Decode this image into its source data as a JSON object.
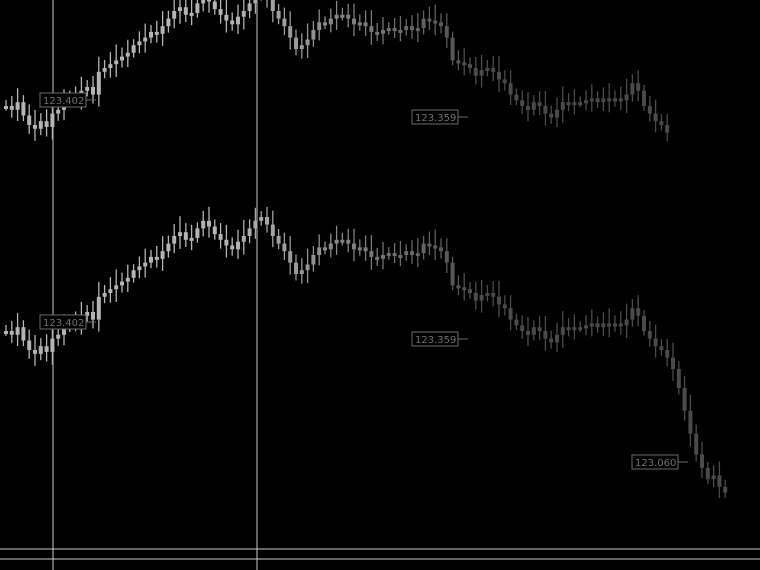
{
  "chart_data": [
    {
      "type": "candlestick",
      "series_color": "#b4b4b4",
      "fade_to_color": "#4a4a4a",
      "annotations": [
        "123.402",
        "123.359"
      ],
      "close_values": [
        0.6,
        0.58,
        0.62,
        0.55,
        0.5,
        0.48,
        0.52,
        0.49,
        0.56,
        0.58,
        0.62,
        0.65,
        0.64,
        0.68,
        0.7,
        0.66,
        0.78,
        0.8,
        0.82,
        0.84,
        0.86,
        0.88,
        0.92,
        0.94,
        0.96,
        0.99,
        0.98,
        1.02,
        1.06,
        1.1,
        1.12,
        1.08,
        1.09,
        1.14,
        1.18,
        1.15,
        1.11,
        1.08,
        1.05,
        1.03,
        1.07,
        1.1,
        1.14,
        1.18,
        1.2,
        1.16,
        1.1,
        1.06,
        1.02,
        0.96,
        0.9,
        0.92,
        0.95,
        1.0,
        1.04,
        1.03,
        1.06,
        1.08,
        1.08,
        1.06,
        1.03,
        1.04,
        1.02,
        0.99,
        0.98,
        1.0,
        1.01,
        1.0,
        1.0,
        1.02,
        1.0,
        1.01,
        1.06,
        1.05,
        1.04,
        1.02,
        0.96,
        0.84,
        0.83,
        0.82,
        0.8,
        0.76,
        0.79,
        0.8,
        0.78,
        0.74,
        0.72,
        0.66,
        0.63,
        0.6,
        0.58,
        0.62,
        0.6,
        0.56,
        0.54,
        0.58,
        0.62,
        0.61,
        0.62,
        0.62,
        0.63,
        0.64,
        0.62,
        0.64,
        0.63,
        0.64,
        0.63,
        0.66,
        0.72,
        0.68,
        0.6,
        0.56,
        0.52,
        0.5,
        0.46
      ]
    },
    {
      "type": "candlestick",
      "series_color": "#b4b4b4",
      "fade_to_color": "#4a4a4a",
      "annotations": [
        "123.402",
        "123.359",
        "123.060"
      ],
      "close_values": [
        0.6,
        0.58,
        0.62,
        0.55,
        0.5,
        0.48,
        0.52,
        0.49,
        0.56,
        0.58,
        0.62,
        0.65,
        0.64,
        0.68,
        0.7,
        0.66,
        0.78,
        0.8,
        0.82,
        0.84,
        0.86,
        0.88,
        0.92,
        0.94,
        0.96,
        0.99,
        0.98,
        1.02,
        1.06,
        1.1,
        1.12,
        1.08,
        1.09,
        1.14,
        1.18,
        1.15,
        1.11,
        1.08,
        1.05,
        1.03,
        1.07,
        1.1,
        1.14,
        1.18,
        1.2,
        1.16,
        1.1,
        1.06,
        1.02,
        0.96,
        0.9,
        0.92,
        0.95,
        1.0,
        1.04,
        1.03,
        1.06,
        1.08,
        1.08,
        1.06,
        1.03,
        1.04,
        1.02,
        0.99,
        0.98,
        1.0,
        1.01,
        1.0,
        1.0,
        1.02,
        1.0,
        1.01,
        1.06,
        1.05,
        1.04,
        1.02,
        0.96,
        0.84,
        0.83,
        0.82,
        0.8,
        0.76,
        0.79,
        0.8,
        0.78,
        0.74,
        0.72,
        0.66,
        0.63,
        0.6,
        0.58,
        0.62,
        0.6,
        0.56,
        0.54,
        0.58,
        0.62,
        0.61,
        0.62,
        0.62,
        0.63,
        0.64,
        0.62,
        0.64,
        0.63,
        0.64,
        0.63,
        0.66,
        0.72,
        0.68,
        0.6,
        0.56,
        0.52,
        0.5,
        0.46,
        0.4,
        0.3,
        0.18,
        0.06,
        -0.05,
        -0.12,
        -0.18,
        -0.16,
        -0.22,
        -0.25
      ]
    }
  ]
}
